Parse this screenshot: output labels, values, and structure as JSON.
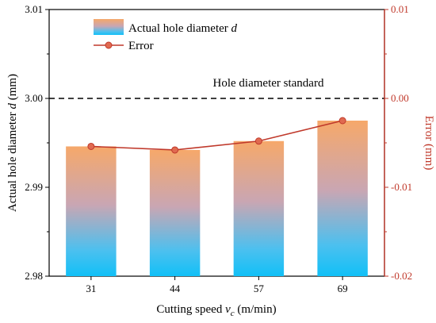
{
  "chart_data": {
    "type": "bar",
    "categories": [
      "31",
      "44",
      "57",
      "69"
    ],
    "bar_series": {
      "name": "Actual hole diameter d",
      "values": [
        2.9946,
        2.9942,
        2.9952,
        2.9975
      ]
    },
    "line_series": {
      "name": "Error",
      "values": [
        -0.0054,
        -0.0058,
        -0.0048,
        -0.0025
      ]
    },
    "xlabel": "Cutting speed v_c (m/min)",
    "xlabel_parts": {
      "pre": "Cutting speed ",
      "var": "v",
      "sub": "c",
      "post": " (m/min)"
    },
    "ylabel": "Actual hole diameter d (mm)",
    "ylabel_parts": {
      "pre": "Actual hole diameter ",
      "var": "d",
      "post": " (mm)"
    },
    "y2label": "Error (mm)",
    "ylim": [
      2.98,
      3.01
    ],
    "y2lim": [
      -0.02,
      0.01
    ],
    "yticks": [
      "2.98",
      "2.99",
      "3.00",
      "3.01"
    ],
    "y2ticks": [
      "-0.02",
      "-0.01",
      "0.00",
      "0.01"
    ],
    "reference_line": {
      "value": 3.0,
      "label": "Hole diameter standard",
      "style": "dashed"
    },
    "legend": {
      "placement": "top-left",
      "bar_label_pre": "Actual hole diameter ",
      "bar_label_var": "d",
      "line_label": "Error"
    },
    "grid": false,
    "colors": {
      "bar_top": "#f6a86a",
      "bar_bottom": "#15c1f6",
      "line": "#c0392b",
      "marker_fill": "#e06a50",
      "right_axis": "#c0392b",
      "reference": "#000000"
    }
  }
}
